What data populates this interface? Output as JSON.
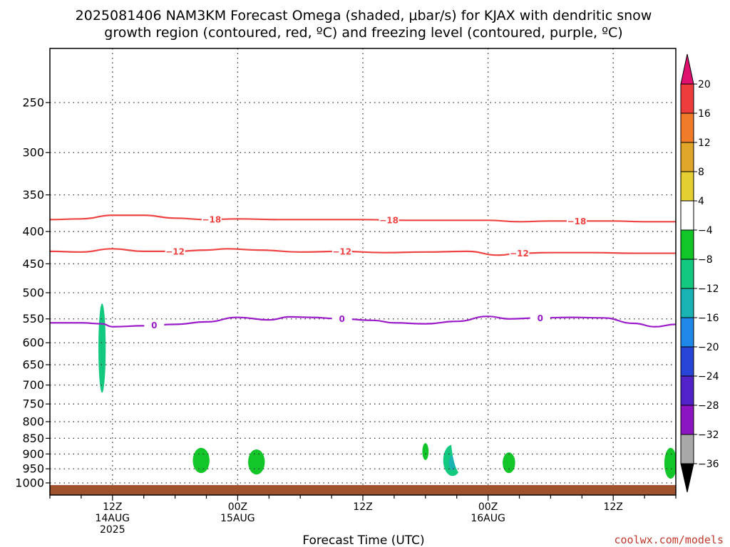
{
  "chart_data": {
    "type": "heatmap",
    "title_line1": "2025081406 NAM3KM Forecast Omega (shaded, μbar/s) for KJAX with dendritic snow",
    "title_line2": "growth region (contoured, red, ºC) and freezing level (contoured, purple, ºC)",
    "xlabel": "Forecast Time (UTC)",
    "credit": "coolwx.com/models",
    "grid": true,
    "x_hours_range": [
      0,
      60
    ],
    "y_pressure_range": [
      200,
      1030
    ],
    "y_log_scale": true,
    "y_ticks": [
      250,
      300,
      350,
      400,
      450,
      500,
      550,
      600,
      650,
      700,
      750,
      800,
      850,
      900,
      950,
      1000
    ],
    "x_ticks": [
      {
        "hour": 6,
        "line1": "12Z",
        "line2": "14AUG",
        "line3": "2025"
      },
      {
        "hour": 18,
        "line1": "00Z",
        "line2": "15AUG",
        "line3": ""
      },
      {
        "hour": 30,
        "line1": "12Z",
        "line2": "",
        "line3": ""
      },
      {
        "hour": 42,
        "line1": "00Z",
        "line2": "16AUG",
        "line3": ""
      },
      {
        "hour": 54,
        "line1": "12Z",
        "line2": "",
        "line3": ""
      }
    ],
    "colorbar": {
      "levels": [
        "20",
        "16",
        "12",
        "8",
        "4",
        "−4",
        "−8",
        "−12",
        "−16",
        "−20",
        "−24",
        "−28",
        "−32",
        "−36"
      ],
      "top_arrow_color": "#e0106e",
      "colors": [
        "#ee3b3b",
        "#f07c2a",
        "#e0a62a",
        "#e6cf32",
        "#ffffff",
        "#12c629",
        "#13c97f",
        "#19b3b3",
        "#1f86ea",
        "#2845d8",
        "#5022c8",
        "#8c14c2",
        "#a8a8a8"
      ],
      "bottom_arrow_color": "#000000"
    },
    "isotherms_red": [
      {
        "label": "−18",
        "label_hours": [
          15.5,
          32.5,
          50.5
        ],
        "points": [
          [
            0,
            383
          ],
          [
            3,
            382
          ],
          [
            6,
            377
          ],
          [
            9,
            377
          ],
          [
            12,
            381
          ],
          [
            15,
            383
          ],
          [
            18,
            382
          ],
          [
            22,
            383
          ],
          [
            26,
            383
          ],
          [
            30,
            383
          ],
          [
            34,
            384
          ],
          [
            38,
            384
          ],
          [
            42,
            384
          ],
          [
            45,
            386
          ],
          [
            48,
            385
          ],
          [
            51,
            385
          ],
          [
            54,
            385
          ],
          [
            57,
            386
          ],
          [
            60,
            386
          ]
        ]
      },
      {
        "label": "−12",
        "label_hours": [
          12,
          28,
          45
        ],
        "points": [
          [
            0,
            430
          ],
          [
            3,
            431
          ],
          [
            6,
            426
          ],
          [
            9,
            430
          ],
          [
            12,
            430
          ],
          [
            15,
            428
          ],
          [
            17,
            426
          ],
          [
            20,
            428
          ],
          [
            24,
            431
          ],
          [
            28,
            430
          ],
          [
            32,
            432
          ],
          [
            36,
            431
          ],
          [
            40,
            430
          ],
          [
            43,
            436
          ],
          [
            45,
            433
          ],
          [
            48,
            432
          ],
          [
            52,
            432
          ],
          [
            56,
            433
          ],
          [
            60,
            433
          ]
        ]
      }
    ],
    "isotherms_purple": [
      {
        "label": "0",
        "label_hours": [
          10,
          28,
          47
        ],
        "points": [
          [
            0,
            558
          ],
          [
            3,
            558
          ],
          [
            5,
            560
          ],
          [
            6,
            566
          ],
          [
            9,
            564
          ],
          [
            12,
            561
          ],
          [
            15,
            556
          ],
          [
            18,
            547
          ],
          [
            21,
            552
          ],
          [
            23,
            546
          ],
          [
            25,
            547
          ],
          [
            28,
            550
          ],
          [
            31,
            553
          ],
          [
            33,
            558
          ],
          [
            36,
            560
          ],
          [
            39,
            555
          ],
          [
            42,
            545
          ],
          [
            44,
            550
          ],
          [
            47,
            548
          ],
          [
            50,
            547
          ],
          [
            53,
            548
          ],
          [
            56,
            559
          ],
          [
            58,
            566
          ],
          [
            60,
            561
          ]
        ]
      }
    ],
    "omega_regions": [
      {
        "hour": 6.2,
        "half_width_h": 0.22,
        "p_top": 358,
        "p_bot": 530,
        "value": 4
      },
      {
        "hour": 5.0,
        "half_width_h": 0.35,
        "p_top": 520,
        "p_bot": 720,
        "value": -8
      },
      {
        "hour": 20.8,
        "half_width_h": 0.3,
        "p_top": 480,
        "p_bot": 690,
        "value": 4
      },
      {
        "hour": 16.9,
        "half_width_h": 0.25,
        "p_top": 800,
        "p_bot": 850,
        "value": 4
      },
      {
        "hour": 14.5,
        "half_width_h": 0.8,
        "p_top": 880,
        "p_bot": 965,
        "value": -6
      },
      {
        "hour": 19.8,
        "half_width_h": 0.8,
        "p_top": 885,
        "p_bot": 970,
        "value": -6
      },
      {
        "hour": 30.0,
        "half_width_h": 0.35,
        "p_top": 925,
        "p_bot": 950,
        "value": 4
      },
      {
        "hour": 36.0,
        "half_width_h": 0.3,
        "p_top": 865,
        "p_bot": 920,
        "value": -6
      },
      {
        "hour": 38.6,
        "half_width_h": 0.9,
        "p_top": 870,
        "p_bot": 975,
        "value": -8
      },
      {
        "hour": 38.6,
        "half_width_h": 0.35,
        "p_top": 905,
        "p_bot": 955,
        "value": -14
      },
      {
        "hour": 39.6,
        "half_width_h": 1.2,
        "p_top": 690,
        "p_bot": 975,
        "value": 4
      },
      {
        "hour": 42.0,
        "half_width_h": 0.4,
        "p_top": 575,
        "p_bot": 660,
        "value": 4
      },
      {
        "hour": 44.0,
        "half_width_h": 0.6,
        "p_top": 895,
        "p_bot": 965,
        "value": -6
      },
      {
        "hour": 53.3,
        "half_width_h": 0.7,
        "p_top": 740,
        "p_bot": 975,
        "value": 4
      },
      {
        "hour": 59.5,
        "half_width_h": 0.6,
        "p_top": 880,
        "p_bot": 985,
        "value": -6
      }
    ],
    "surface_color": "#a0522d"
  }
}
